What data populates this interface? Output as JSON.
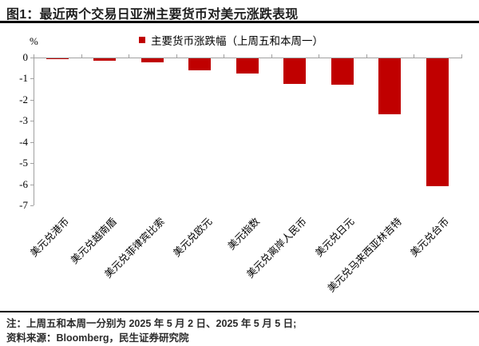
{
  "header": {
    "title": "图1：最近两个交易日亚洲主要货币对美元涨跌表现"
  },
  "chart_data": {
    "type": "bar",
    "title": "最近两个交易日亚洲主要货币对美元涨跌表现",
    "unit_label": "%",
    "legend": [
      {
        "label": "主要货币涨跌幅（上周五和本周一）",
        "color": "#c00000"
      }
    ],
    "legend_position": "top-center",
    "categories": [
      "美元兑港币",
      "美元兑越南盾",
      "美元兑菲律宾比索",
      "美元兑欧元",
      "美元指数",
      "美元兑离岸人民币",
      "美元兑日元",
      "美元兑马来西亚林吉特",
      "美元兑台币"
    ],
    "values": [
      -0.06,
      -0.11,
      -0.19,
      -0.57,
      -0.73,
      -1.23,
      -1.26,
      -2.65,
      -6.05
    ],
    "xlabel": "",
    "ylabel": "%",
    "ylim": [
      -7,
      0
    ],
    "yticks": [
      0,
      -1,
      -2,
      -3,
      -4,
      -5,
      -6,
      -7
    ],
    "bar_color": "#c00000",
    "axis_color": "#a0a0a0",
    "grid": false
  },
  "footer": {
    "note": "注：上周五和本周一分别为 2025 年 5 月 2 日、2025 年 5 月 5 日;",
    "source": "资料来源：Bloomberg，民生证券研究院"
  }
}
